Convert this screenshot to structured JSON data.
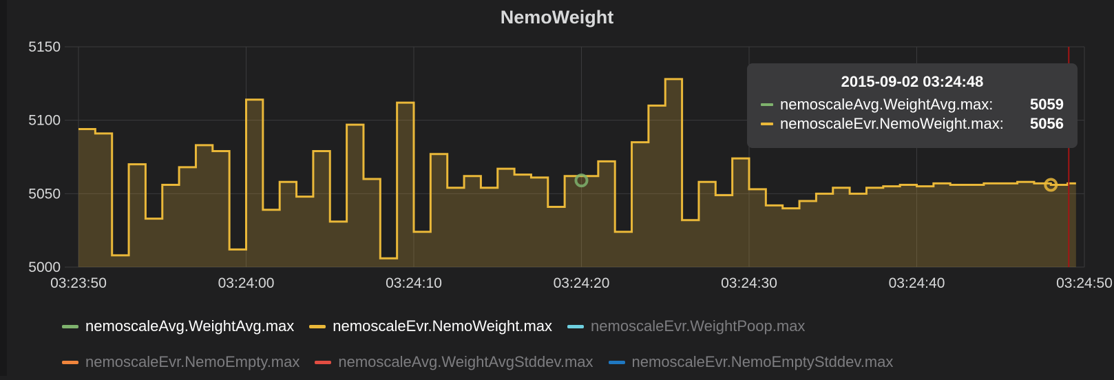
{
  "panel": {
    "title": "NemoWeight"
  },
  "chart_data": {
    "type": "line",
    "title": "NemoWeight",
    "xlabel": "",
    "ylabel": "",
    "ylim": [
      5000,
      5150
    ],
    "xlim": [
      "03:23:50",
      "03:24:50"
    ],
    "y_ticks": [
      "5000",
      "5050",
      "5100",
      "5150"
    ],
    "x_ticks": [
      "03:23:50",
      "03:24:00",
      "03:24:10",
      "03:24:20",
      "03:24:30",
      "03:24:40",
      "03:24:50"
    ],
    "step": true,
    "grid": true,
    "fill_area": true,
    "legend_position": "bottom",
    "series": [
      {
        "name": "nemoscaleEvr.NemoWeight.max",
        "color": "#eab839",
        "x": [
          "03:23:50",
          "03:23:51",
          "03:23:52",
          "03:23:53",
          "03:23:54",
          "03:23:55",
          "03:23:56",
          "03:23:57",
          "03:23:58",
          "03:23:59",
          "03:24:00",
          "03:24:01",
          "03:24:02",
          "03:24:03",
          "03:24:04",
          "03:24:05",
          "03:24:06",
          "03:24:07",
          "03:24:08",
          "03:24:09",
          "03:24:10",
          "03:24:11",
          "03:24:12",
          "03:24:13",
          "03:24:14",
          "03:24:15",
          "03:24:16",
          "03:24:17",
          "03:24:18",
          "03:24:19",
          "03:24:20",
          "03:24:21",
          "03:24:22",
          "03:24:23",
          "03:24:24",
          "03:24:25",
          "03:24:26",
          "03:24:27",
          "03:24:28",
          "03:24:29",
          "03:24:30",
          "03:24:31",
          "03:24:32",
          "03:24:33",
          "03:24:34",
          "03:24:35",
          "03:24:36",
          "03:24:37",
          "03:24:38",
          "03:24:39",
          "03:24:40",
          "03:24:41",
          "03:24:42",
          "03:24:43",
          "03:24:44",
          "03:24:45",
          "03:24:46",
          "03:24:47",
          "03:24:48",
          "03:24:49"
        ],
        "values": [
          5094,
          5091,
          5008,
          5070,
          5033,
          5056,
          5068,
          5083,
          5079,
          5012,
          5114,
          5039,
          5058,
          5048,
          5079,
          5031,
          5097,
          5060,
          5006,
          5112,
          5024,
          5077,
          5054,
          5062,
          5054,
          5067,
          5063,
          5061,
          5041,
          5062,
          5062,
          5072,
          5024,
          5085,
          5110,
          5128,
          5032,
          5058,
          5049,
          5074,
          5053,
          5042,
          5040,
          5045,
          5050,
          5054,
          5050,
          5054,
          5055,
          5056,
          5055,
          5057,
          5056,
          5056,
          5057,
          5057,
          5058,
          5057,
          5056,
          5057
        ]
      }
    ],
    "hover": {
      "time": "2015-09-02 03:24:48",
      "markers": [
        {
          "series": "nemoscaleAvg.WeightAvg.max",
          "x": "03:24:20",
          "y": 5059,
          "color": "#7eb26d"
        },
        {
          "series": "nemoscaleEvr.NemoWeight.max",
          "x": "03:24:48",
          "y": 5056,
          "color": "#eab839"
        }
      ]
    }
  },
  "tooltip": {
    "time": "2015-09-02 03:24:48",
    "rows": [
      {
        "label": "nemoscaleAvg.WeightAvg.max:",
        "value": "5059",
        "color": "#7eb26d"
      },
      {
        "label": "nemoscaleEvr.NemoWeight.max:",
        "value": "5056",
        "color": "#eab839"
      }
    ]
  },
  "legend": {
    "rows": [
      [
        {
          "label": "nemoscaleAvg.WeightAvg.max",
          "color": "#7eb26d",
          "active": true
        },
        {
          "label": "nemoscaleEvr.NemoWeight.max",
          "color": "#eab839",
          "active": true
        },
        {
          "label": "nemoscaleEvr.WeightPoop.max",
          "color": "#6ed0e0",
          "active": false
        }
      ],
      [
        {
          "label": "nemoscaleEvr.NemoEmpty.max",
          "color": "#ef843c",
          "active": false
        },
        {
          "label": "nemoscaleAvg.WeightAvgStddev.max",
          "color": "#e24d42",
          "active": false
        },
        {
          "label": "nemoscaleEvr.NemoEmptyStddev.max",
          "color": "#1f78c1",
          "active": false
        }
      ]
    ]
  }
}
